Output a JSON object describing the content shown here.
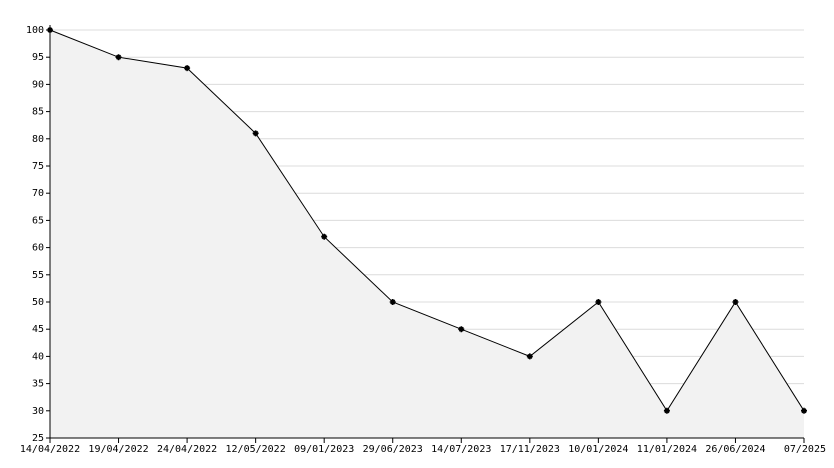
{
  "chart_data": {
    "type": "area",
    "categories": [
      "14/04/2022",
      "19/04/2022",
      "24/04/2022",
      "12/05/2022",
      "09/01/2023",
      "29/06/2023",
      "14/07/2023",
      "17/11/2023",
      "10/01/2024",
      "11/01/2024",
      "26/06/2024",
      "07/2025"
    ],
    "values": [
      100,
      95,
      93,
      81,
      62,
      50,
      45,
      40,
      50,
      30,
      50,
      30
    ],
    "color": "#000000",
    "fill": "#f2f2f2",
    "ylim": [
      25,
      100
    ],
    "yticks": [
      25,
      30,
      35,
      40,
      45,
      50,
      55,
      60,
      65,
      70,
      75,
      80,
      85,
      90,
      95,
      100
    ],
    "grid": true
  }
}
